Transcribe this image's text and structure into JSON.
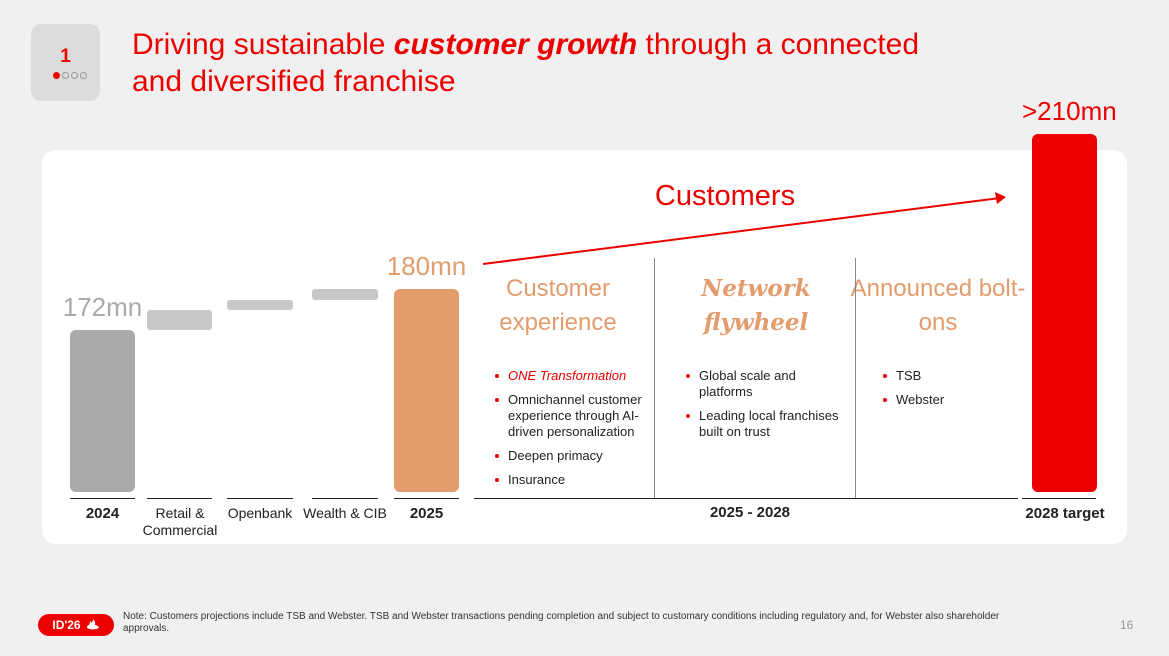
{
  "header": {
    "section_number": "1",
    "title_pre": "Driving sustainable ",
    "title_emph": "customer growth",
    "title_post": " through a connected and diversified franchise"
  },
  "colors": {
    "accent": "#ec0000",
    "grey_bar": "#aaaaaa",
    "light_grey_bar": "#c8c8c8",
    "peach": "#e39c6c"
  },
  "chart_data": {
    "type": "bar",
    "subtype": "waterfall",
    "ylabel": "Customers",
    "categories": [
      "2024",
      "Retail & Commercial",
      "Openbank",
      "Wealth & CIB",
      "2025",
      "2028 target"
    ],
    "values": [
      172,
      4,
      2,
      2,
      180,
      210
    ],
    "value_labels": [
      "172mn",
      "",
      "",
      "",
      "180mn",
      ">210mn"
    ],
    "ylim": [
      0,
      220
    ],
    "period_label": "2025 - 2028",
    "arrow_label": "Customers"
  },
  "columns": [
    {
      "heading": "Customer experience",
      "bullets": [
        "ONE Transformation",
        "Omnichannel customer experience through AI-driven personalization",
        "Deepen primacy",
        "Insurance"
      ]
    },
    {
      "heading": "Network flywheel",
      "bullets": [
        "Global scale and platforms",
        "Leading local franchises built on trust"
      ]
    },
    {
      "heading": "Announced bolt-ons",
      "bullets": [
        "TSB",
        "Webster"
      ]
    }
  ],
  "footer": {
    "logo_text": "ID'26",
    "note": "Note: Customers projections include TSB and Webster. TSB and Webster transactions pending completion and subject to customary conditions including regulatory and, for Webster also shareholder approvals.",
    "page": "16"
  }
}
